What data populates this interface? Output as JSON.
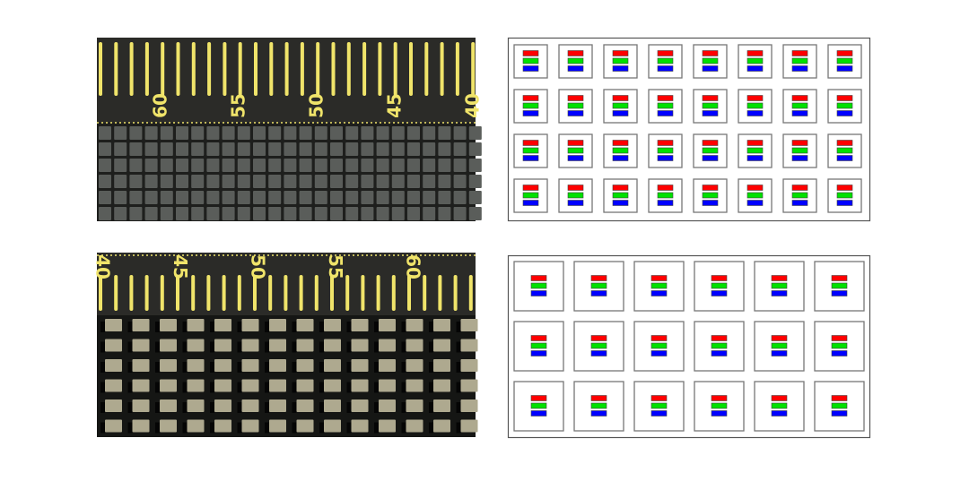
{
  "panels": {
    "top_photo": {
      "ruler_labels": [
        "60",
        "55",
        "50",
        "45",
        "40"
      ],
      "direction": "descending"
    },
    "bottom_photo": {
      "ruler_labels": [
        "40",
        "45",
        "50",
        "55",
        "60"
      ],
      "direction": "ascending"
    },
    "top_diagram": {
      "columns": 8,
      "rows": 4
    },
    "bottom_diagram": {
      "columns": 6,
      "rows": 3
    }
  },
  "colors": {
    "red": "#ff0000",
    "green": "#00e000",
    "blue": "#0000ff",
    "ruler": "#2b2b28",
    "tick": "#f0e46a"
  }
}
